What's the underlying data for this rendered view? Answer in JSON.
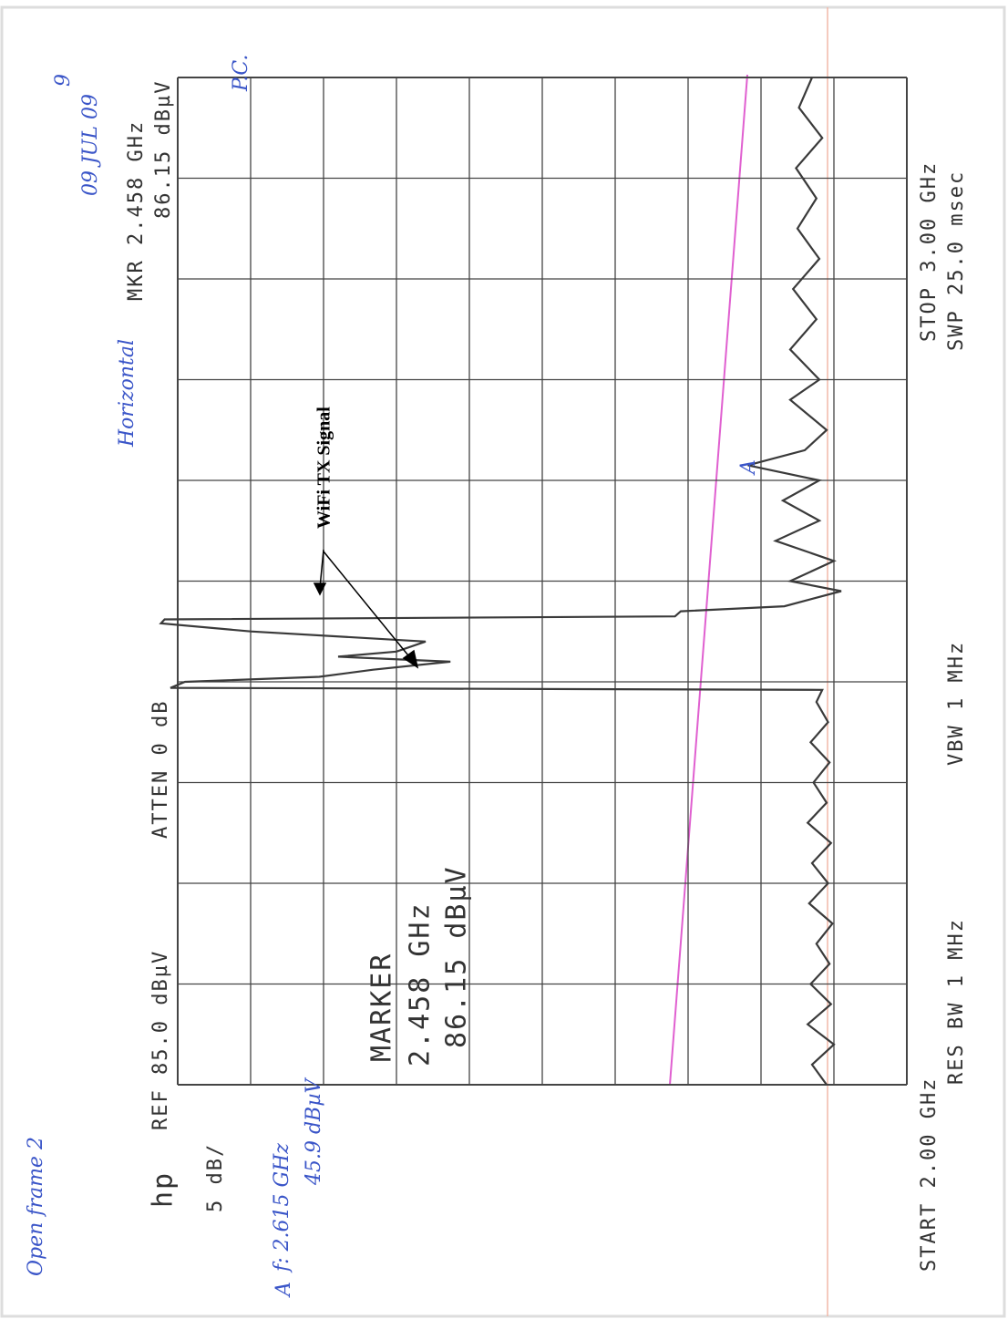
{
  "chart_data": {
    "type": "line",
    "x": [
      2.0,
      2.02,
      2.04,
      2.06,
      2.08,
      2.1,
      2.12,
      2.14,
      2.16,
      2.18,
      2.2,
      2.22,
      2.24,
      2.26,
      2.28,
      2.3,
      2.32,
      2.34,
      2.36,
      2.38,
      2.392,
      2.394,
      2.4,
      2.405,
      2.412,
      2.42,
      2.425,
      2.43,
      2.44,
      2.45,
      2.458,
      2.462,
      2.465,
      2.47,
      2.475,
      2.49,
      2.5,
      2.52,
      2.54,
      2.56,
      2.58,
      2.6,
      2.615,
      2.63,
      2.65,
      2.68,
      2.7,
      2.73,
      2.76,
      2.79,
      2.82,
      2.85,
      2.88,
      2.91,
      2.94,
      2.97,
      3.0
    ],
    "values": [
      40.5,
      41.5,
      40,
      41.8,
      40.2,
      41.6,
      40.3,
      41.2,
      40.1,
      41.7,
      40.4,
      41.5,
      40.2,
      41.8,
      40.5,
      41.4,
      40.3,
      41.6,
      40.4,
      41.2,
      40.8,
      85.5,
      84.5,
      75.3,
      71.6,
      66.3,
      74,
      70,
      68,
      80,
      86.15,
      85.9,
      50.9,
      50.5,
      43.4,
      39.5,
      43,
      40,
      44,
      41,
      43.5,
      41,
      45.9,
      42,
      40.5,
      43,
      41,
      43,
      41.2,
      42.8,
      41,
      42.5,
      41.2,
      42.6,
      40.8,
      42.4,
      41.5
    ],
    "color": "#3a3a3a",
    "xlim": [
      2.0,
      3.0
    ],
    "ylim": [
      35,
      85
    ],
    "grid": true,
    "logo": "hp",
    "ref": "REF 85.0 dBµV",
    "atten": "ATTEN 0 dB",
    "scale": "5 dB/",
    "marker_readout": [
      "MKR 2.458 GHz",
      "86.15 dBµV"
    ],
    "marker_box": [
      "MARKER",
      "2.458 GHz",
      "86.15 dBµV"
    ],
    "start": "START 2.00 GHz",
    "res_bw": "RES BW 1 MHz",
    "vbw": "VBW 1 MHz",
    "stop": "STOP 3.00 GHz",
    "sweep": "SWP 25.0 msec",
    "annotation": "WiFi TX Signal",
    "handwritten": [
      "Open frame 2",
      "09 JUL 09",
      "9",
      "Horizontal",
      "P.C.",
      "A",
      "f: 2.615 GHz",
      "45.9 dBµV",
      "A"
    ]
  }
}
